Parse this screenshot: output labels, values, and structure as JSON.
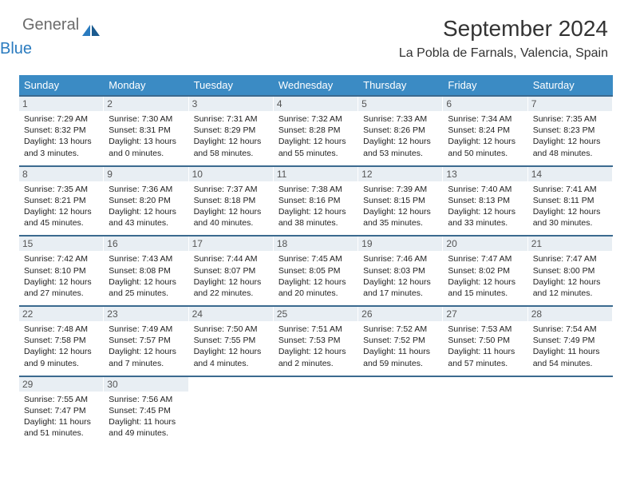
{
  "logo": {
    "part1": "General",
    "part2": "Blue"
  },
  "title": "September 2024",
  "subtitle": "La Pobla de Farnals, Valencia, Spain",
  "colors": {
    "header_bg": "#3b8bc4",
    "week_border": "#3b6a8f",
    "daynum_bg": "#e8eef3",
    "logo_gray": "#6b6b6b",
    "logo_blue": "#2a7bbf"
  },
  "days_of_week": [
    "Sunday",
    "Monday",
    "Tuesday",
    "Wednesday",
    "Thursday",
    "Friday",
    "Saturday"
  ],
  "weeks": [
    [
      {
        "n": "1",
        "sr": "7:29 AM",
        "ss": "8:32 PM",
        "dl": "13 hours and 3 minutes."
      },
      {
        "n": "2",
        "sr": "7:30 AM",
        "ss": "8:31 PM",
        "dl": "13 hours and 0 minutes."
      },
      {
        "n": "3",
        "sr": "7:31 AM",
        "ss": "8:29 PM",
        "dl": "12 hours and 58 minutes."
      },
      {
        "n": "4",
        "sr": "7:32 AM",
        "ss": "8:28 PM",
        "dl": "12 hours and 55 minutes."
      },
      {
        "n": "5",
        "sr": "7:33 AM",
        "ss": "8:26 PM",
        "dl": "12 hours and 53 minutes."
      },
      {
        "n": "6",
        "sr": "7:34 AM",
        "ss": "8:24 PM",
        "dl": "12 hours and 50 minutes."
      },
      {
        "n": "7",
        "sr": "7:35 AM",
        "ss": "8:23 PM",
        "dl": "12 hours and 48 minutes."
      }
    ],
    [
      {
        "n": "8",
        "sr": "7:35 AM",
        "ss": "8:21 PM",
        "dl": "12 hours and 45 minutes."
      },
      {
        "n": "9",
        "sr": "7:36 AM",
        "ss": "8:20 PM",
        "dl": "12 hours and 43 minutes."
      },
      {
        "n": "10",
        "sr": "7:37 AM",
        "ss": "8:18 PM",
        "dl": "12 hours and 40 minutes."
      },
      {
        "n": "11",
        "sr": "7:38 AM",
        "ss": "8:16 PM",
        "dl": "12 hours and 38 minutes."
      },
      {
        "n": "12",
        "sr": "7:39 AM",
        "ss": "8:15 PM",
        "dl": "12 hours and 35 minutes."
      },
      {
        "n": "13",
        "sr": "7:40 AM",
        "ss": "8:13 PM",
        "dl": "12 hours and 33 minutes."
      },
      {
        "n": "14",
        "sr": "7:41 AM",
        "ss": "8:11 PM",
        "dl": "12 hours and 30 minutes."
      }
    ],
    [
      {
        "n": "15",
        "sr": "7:42 AM",
        "ss": "8:10 PM",
        "dl": "12 hours and 27 minutes."
      },
      {
        "n": "16",
        "sr": "7:43 AM",
        "ss": "8:08 PM",
        "dl": "12 hours and 25 minutes."
      },
      {
        "n": "17",
        "sr": "7:44 AM",
        "ss": "8:07 PM",
        "dl": "12 hours and 22 minutes."
      },
      {
        "n": "18",
        "sr": "7:45 AM",
        "ss": "8:05 PM",
        "dl": "12 hours and 20 minutes."
      },
      {
        "n": "19",
        "sr": "7:46 AM",
        "ss": "8:03 PM",
        "dl": "12 hours and 17 minutes."
      },
      {
        "n": "20",
        "sr": "7:47 AM",
        "ss": "8:02 PM",
        "dl": "12 hours and 15 minutes."
      },
      {
        "n": "21",
        "sr": "7:47 AM",
        "ss": "8:00 PM",
        "dl": "12 hours and 12 minutes."
      }
    ],
    [
      {
        "n": "22",
        "sr": "7:48 AM",
        "ss": "7:58 PM",
        "dl": "12 hours and 9 minutes."
      },
      {
        "n": "23",
        "sr": "7:49 AM",
        "ss": "7:57 PM",
        "dl": "12 hours and 7 minutes."
      },
      {
        "n": "24",
        "sr": "7:50 AM",
        "ss": "7:55 PM",
        "dl": "12 hours and 4 minutes."
      },
      {
        "n": "25",
        "sr": "7:51 AM",
        "ss": "7:53 PM",
        "dl": "12 hours and 2 minutes."
      },
      {
        "n": "26",
        "sr": "7:52 AM",
        "ss": "7:52 PM",
        "dl": "11 hours and 59 minutes."
      },
      {
        "n": "27",
        "sr": "7:53 AM",
        "ss": "7:50 PM",
        "dl": "11 hours and 57 minutes."
      },
      {
        "n": "28",
        "sr": "7:54 AM",
        "ss": "7:49 PM",
        "dl": "11 hours and 54 minutes."
      }
    ],
    [
      {
        "n": "29",
        "sr": "7:55 AM",
        "ss": "7:47 PM",
        "dl": "11 hours and 51 minutes."
      },
      {
        "n": "30",
        "sr": "7:56 AM",
        "ss": "7:45 PM",
        "dl": "11 hours and 49 minutes."
      },
      null,
      null,
      null,
      null,
      null
    ]
  ],
  "labels": {
    "sunrise": "Sunrise: ",
    "sunset": "Sunset: ",
    "daylight": "Daylight: "
  }
}
